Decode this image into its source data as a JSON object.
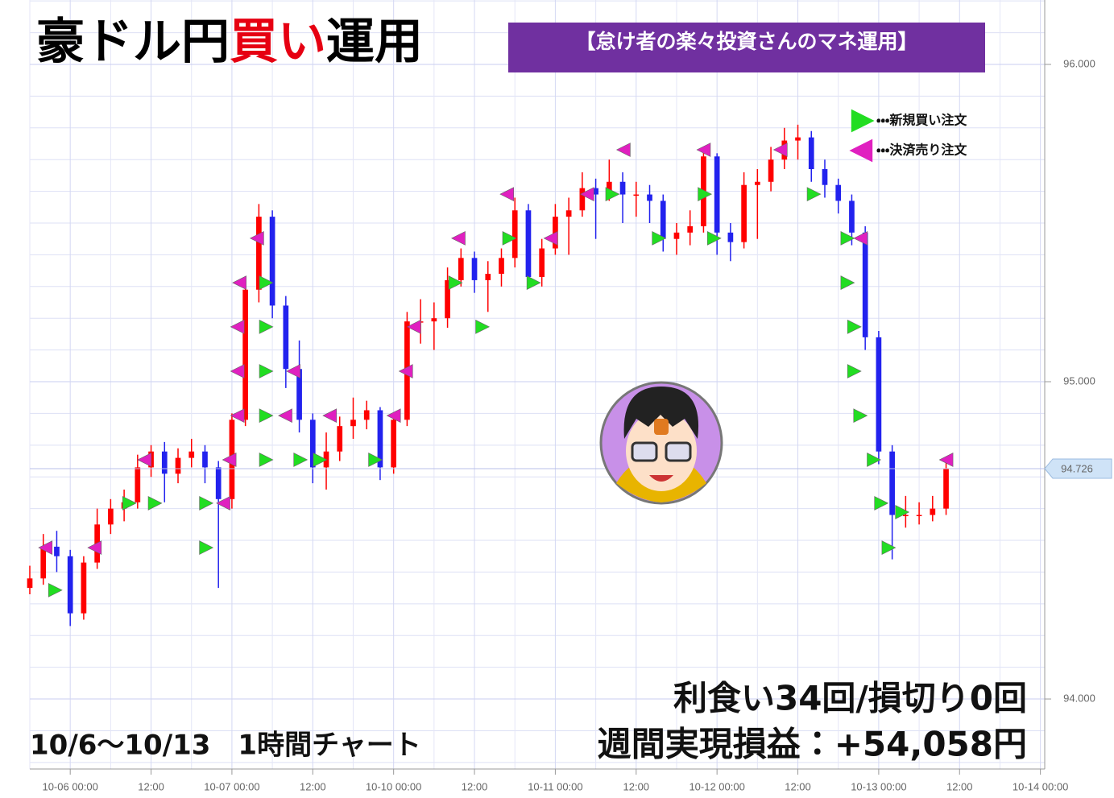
{
  "overlay": {
    "title_parts": [
      {
        "text": "豪ドル円",
        "color": "#000000"
      },
      {
        "text": "買い",
        "color": "#e60012"
      },
      {
        "text": "運用",
        "color": "#000000"
      }
    ],
    "banner": "【怠け者の楽々投資さんのマネ運用】",
    "result_count": "利食い34回/損切り0回",
    "result_profit": "週間実現損益：+54,058円",
    "period": "10/6～10/13　1時間チャート"
  },
  "chart_data": {
    "type": "candlestick",
    "x": [
      -6,
      -4,
      -2,
      0,
      2,
      4,
      6,
      8,
      10,
      12,
      14,
      16,
      18,
      20,
      22,
      24,
      26,
      28,
      30,
      32,
      34,
      36,
      38,
      40,
      42,
      44,
      46,
      48,
      50,
      52,
      54,
      56,
      58,
      60,
      62,
      64,
      66,
      68,
      70,
      72,
      74,
      76,
      78,
      80,
      82,
      84,
      86,
      88,
      90,
      92,
      94,
      96,
      98,
      100,
      102,
      104,
      106,
      108,
      110,
      112,
      114,
      116,
      118,
      120,
      122,
      124,
      126,
      128,
      130
    ],
    "open": [
      94.35,
      94.38,
      94.48,
      94.45,
      94.27,
      94.43,
      94.55,
      94.6,
      94.62,
      94.73,
      94.78,
      94.71,
      94.76,
      94.78,
      94.73,
      94.63,
      94.88,
      95.29,
      95.52,
      95.24,
      95.04,
      94.88,
      94.73,
      94.78,
      94.86,
      94.88,
      94.91,
      94.73,
      94.88,
      95.19,
      95.19,
      95.2,
      95.32,
      95.39,
      95.32,
      95.34,
      95.39,
      95.54,
      95.33,
      95.42,
      95.52,
      95.54,
      95.61,
      95.59,
      95.63,
      95.59,
      95.59,
      95.57,
      95.45,
      95.47,
      95.49,
      95.71,
      95.47,
      95.44,
      95.62,
      95.63,
      95.7,
      95.76,
      95.77,
      95.67,
      95.62,
      95.57,
      95.47,
      95.14,
      94.78,
      94.58,
      94.58,
      94.58,
      94.6
    ],
    "high": [
      94.42,
      94.52,
      94.53,
      94.47,
      94.45,
      94.6,
      94.63,
      94.66,
      94.77,
      94.8,
      94.81,
      94.79,
      94.82,
      94.8,
      94.75,
      94.9,
      95.33,
      95.56,
      95.54,
      95.27,
      95.13,
      94.9,
      94.84,
      94.89,
      94.95,
      94.94,
      94.92,
      94.9,
      95.22,
      95.26,
      95.25,
      95.36,
      95.42,
      95.41,
      95.38,
      95.42,
      95.58,
      95.56,
      95.45,
      95.56,
      95.58,
      95.66,
      95.64,
      95.7,
      95.66,
      95.63,
      95.62,
      95.59,
      95.5,
      95.54,
      95.74,
      95.72,
      95.5,
      95.66,
      95.67,
      95.74,
      95.8,
      95.81,
      95.79,
      95.7,
      95.64,
      95.59,
      95.49,
      95.16,
      94.8,
      94.64,
      94.62,
      94.64,
      94.76
    ],
    "low": [
      94.33,
      94.36,
      94.4,
      94.23,
      94.25,
      94.41,
      94.52,
      94.56,
      94.6,
      94.7,
      94.62,
      94.68,
      94.73,
      94.68,
      94.35,
      94.6,
      94.86,
      95.25,
      95.2,
      94.98,
      94.84,
      94.68,
      94.66,
      94.75,
      94.82,
      94.85,
      94.69,
      94.71,
      94.86,
      95.12,
      95.1,
      95.17,
      95.3,
      95.28,
      95.22,
      95.3,
      95.36,
      95.3,
      95.3,
      95.4,
      95.4,
      95.52,
      95.45,
      95.57,
      95.5,
      95.52,
      95.5,
      95.41,
      95.4,
      95.43,
      95.47,
      95.4,
      95.38,
      95.42,
      95.45,
      95.6,
      95.67,
      95.7,
      95.63,
      95.58,
      95.53,
      95.43,
      95.1,
      94.74,
      94.44,
      94.54,
      94.55,
      94.56,
      94.58
    ],
    "close": [
      94.38,
      94.48,
      94.45,
      94.27,
      94.43,
      94.55,
      94.6,
      94.62,
      94.73,
      94.78,
      94.71,
      94.76,
      94.78,
      94.73,
      94.63,
      94.88,
      95.29,
      95.52,
      95.24,
      95.04,
      94.88,
      94.73,
      94.78,
      94.86,
      94.88,
      94.91,
      94.73,
      94.88,
      95.19,
      95.19,
      95.2,
      95.32,
      95.39,
      95.32,
      95.34,
      95.39,
      95.54,
      95.33,
      95.42,
      95.52,
      95.54,
      95.61,
      95.59,
      95.63,
      95.59,
      95.59,
      95.57,
      95.45,
      95.47,
      95.49,
      95.71,
      95.47,
      95.44,
      95.62,
      95.63,
      95.7,
      95.76,
      95.77,
      95.67,
      95.62,
      95.57,
      95.47,
      95.14,
      94.78,
      94.58,
      94.58,
      94.58,
      94.6,
      94.726
    ],
    "up_color": "#ff0000",
    "down_color": "#2222ee",
    "orders": [
      {
        "name": "・・・新規買い注文",
        "color": "#22dd22",
        "direction": "right",
        "x": [
          -2.3,
          8.7,
          12.5,
          20.1,
          20.1,
          29.0,
          29.0,
          29.0,
          29.0,
          29.0,
          34.1,
          37.0,
          45.2,
          57.1,
          61.1,
          65.1,
          68.7,
          80.4,
          87.3,
          94.1,
          95.5,
          110.3,
          115.3,
          115.3,
          116.3,
          116.3,
          117.2,
          119.2,
          120.3,
          121.4,
          123.4
        ],
        "values": [
          94.343,
          94.617,
          94.617,
          94.617,
          94.477,
          95.312,
          95.173,
          95.033,
          94.893,
          94.754,
          94.754,
          94.754,
          94.754,
          95.312,
          95.173,
          95.452,
          95.312,
          95.591,
          95.452,
          95.591,
          95.452,
          95.591,
          95.452,
          95.312,
          95.173,
          95.033,
          94.893,
          94.754,
          94.617,
          94.477,
          94.589
        ]
      },
      {
        "name": "・・・決済売り注文",
        "color": "#e020c0",
        "direction": "left",
        "x": [
          -3.6,
          3.7,
          11.1,
          22.8,
          23.7,
          24.9,
          24.9,
          24.9,
          25.2,
          27.8,
          32.0,
          33.2,
          38.6,
          48.1,
          49.9,
          51.1,
          57.7,
          64.9,
          71.4,
          76.8,
          82.2,
          94.1,
          105.5,
          117.4,
          130.1
        ],
        "values": [
          94.477,
          94.477,
          94.754,
          94.617,
          94.754,
          94.893,
          95.033,
          95.173,
          95.312,
          95.452,
          94.893,
          95.033,
          94.893,
          94.893,
          95.033,
          95.173,
          95.452,
          95.591,
          95.452,
          95.591,
          95.731,
          95.731,
          95.731,
          95.452,
          94.754
        ]
      }
    ],
    "last_price": 94.726,
    "xlim": [
      -6,
      145
    ],
    "xticks": [
      {
        "value": 0,
        "label": "10-06 00:00"
      },
      {
        "value": 12,
        "label": "12:00"
      },
      {
        "value": 24,
        "label": "10-07 00:00"
      },
      {
        "value": 36,
        "label": "12:00"
      },
      {
        "value": 48,
        "label": "10-10 00:00"
      },
      {
        "value": 60,
        "label": "12:00"
      },
      {
        "value": 72,
        "label": "10-11 00:00"
      },
      {
        "value": 84,
        "label": "12:00"
      },
      {
        "value": 96,
        "label": "10-12 00:00"
      },
      {
        "value": 108,
        "label": "12:00"
      },
      {
        "value": 120,
        "label": "10-13 00:00"
      },
      {
        "value": 132,
        "label": "12:00"
      },
      {
        "value": 144,
        "label": "10-14 00:00"
      }
    ],
    "minor_xticks": [
      -6,
      6,
      18,
      30,
      42,
      54,
      66,
      78,
      90,
      102,
      114,
      126,
      138
    ],
    "ylim": [
      93.792,
      96.203
    ],
    "yticks": [
      {
        "value": 94,
        "label": "94.000"
      },
      {
        "value": 95,
        "label": "95.000"
      },
      {
        "value": 96,
        "label": "96.000"
      }
    ],
    "minor_yticks": [
      93.8,
      93.9,
      94.1,
      94.2,
      94.3,
      94.4,
      94.5,
      94.6,
      94.7,
      94.8,
      94.9,
      95.1,
      95.2,
      95.3,
      95.4,
      95.5,
      95.6,
      95.7,
      95.8,
      95.9,
      96.1,
      96.2
    ],
    "grid": true
  }
}
